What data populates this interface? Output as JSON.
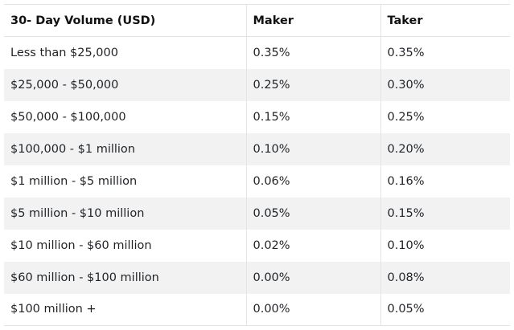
{
  "table": {
    "headers": [
      "30- Day Volume (USD)",
      "Maker",
      "Taker"
    ],
    "rows": [
      [
        "Less than $25,000",
        "0.35%",
        "0.35%"
      ],
      [
        "$25,000 - $50,000",
        "0.25%",
        "0.30%"
      ],
      [
        "$50,000 - $100,000",
        "0.15%",
        "0.25%"
      ],
      [
        "$100,000 - $1 million",
        "0.10%",
        "0.20%"
      ],
      [
        "$1 million - $5 million",
        "0.06%",
        "0.16%"
      ],
      [
        "$5 million - $10 million",
        "0.05%",
        "0.15%"
      ],
      [
        "$10 million - $60 million",
        "0.02%",
        "0.10%"
      ],
      [
        "$60 million - $100 million",
        "0.00%",
        "0.08%"
      ],
      [
        "$100 million +",
        "0.00%",
        "0.05%"
      ]
    ]
  }
}
